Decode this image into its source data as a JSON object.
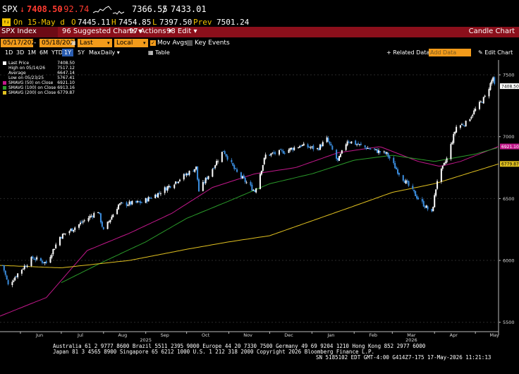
{
  "quote": {
    "ticker": "SPX",
    "arrow": "↓",
    "last": "7408.50",
    "change": "-92.74",
    "range_low": "7366.55",
    "separator": "/",
    "range_high": "7433.01",
    "prefix": "On 15-May d",
    "open_label": "O",
    "open": "7445.11",
    "high_label": "H",
    "high": "7454.85",
    "low_label": "L",
    "low": "7397.50",
    "prev_label": "Prev",
    "prev": "7501.24"
  },
  "toolbar": {
    "security": "SPX Index",
    "suggested": "Suggested Charts",
    "actions": "Actions",
    "edit": "Edit",
    "chart_name": "Candle Chart"
  },
  "controls": {
    "date_from": "05/17/2025",
    "date_to": "05/18/2026",
    "price_field": "Last Price",
    "currency": "Local CCY",
    "mov_avgs": "Mov Avgs",
    "key_events": "Key Events"
  },
  "periods": {
    "items": [
      "1D",
      "3D",
      "1M",
      "6M",
      "YTD",
      "1Y",
      "5Y",
      "Max"
    ],
    "selected": "1Y",
    "frequency": "Daily",
    "table": "Table",
    "related": "Related Data",
    "add_data_placeholder": "Add Data",
    "edit_chart": "Edit Chart"
  },
  "legend": [
    {
      "label": "Last Price",
      "value": "7408.50",
      "color": "#ffffff"
    },
    {
      "label": "High on 05/14/26",
      "value": "7517.12",
      "color": "#000000"
    },
    {
      "label": "Average",
      "value": "6647.14",
      "color": "#000000"
    },
    {
      "label": "Low on 05/23/25",
      "value": "5767.41",
      "color": "#000000"
    },
    {
      "label": "SMAVG (50) on Close",
      "value": "6921.10",
      "color": "#c2188b"
    },
    {
      "label": "SMAVG (100) on Close",
      "value": "6913.16",
      "color": "#2a9a2a"
    },
    {
      "label": "SMAVG (200) on Close",
      "value": "6779.87",
      "color": "#e0c020"
    }
  ],
  "chart_data": {
    "type": "candlestick",
    "title": "",
    "xlabel": "",
    "ylabel": "",
    "ylim": [
      5430,
      7620
    ],
    "y_ticks": [
      5500,
      6000,
      6500,
      7000,
      7500
    ],
    "month_labels": [
      "Jun",
      "Jul",
      "Aug",
      "Sep",
      "Oct",
      "Nov",
      "Dec",
      "Jan",
      "Feb",
      "Mar",
      "Apr",
      "May"
    ],
    "year_labels": [
      "2025",
      "2026"
    ],
    "x_range": [
      "2025-05-17",
      "2026-05-18"
    ],
    "value_tags": [
      {
        "label": "7408.50",
        "value": 7408.5,
        "color": "#ffffff",
        "text_color": "#000000"
      },
      {
        "label": "6921.10",
        "value": 6921.1,
        "color": "#c2188b",
        "text_color": "#ffffff"
      },
      {
        "label": "6779.87",
        "value": 6779.87,
        "color": "#e0c020",
        "text_color": "#000000"
      }
    ],
    "series": [
      {
        "name": "Last Price",
        "type": "candle",
        "up_color": "#ffffff",
        "down_color": "#3b8ee0",
        "anchors": [
          [
            "2025-05-19",
            5960
          ],
          [
            "2025-05-23",
            5800
          ],
          [
            "2025-06-01",
            5920
          ],
          [
            "2025-06-10",
            6020
          ],
          [
            "2025-06-20",
            5980
          ],
          [
            "2025-06-30",
            6190
          ],
          [
            "2025-07-10",
            6260
          ],
          [
            "2025-07-28",
            6400
          ],
          [
            "2025-08-01",
            6240
          ],
          [
            "2025-08-12",
            6450
          ],
          [
            "2025-08-29",
            6470
          ],
          [
            "2025-09-10",
            6540
          ],
          [
            "2025-09-30",
            6690
          ],
          [
            "2025-10-08",
            6750
          ],
          [
            "2025-10-10",
            6560
          ],
          [
            "2025-10-28",
            6890
          ],
          [
            "2025-11-06",
            6720
          ],
          [
            "2025-11-20",
            6560
          ],
          [
            "2025-11-28",
            6850
          ],
          [
            "2025-12-11",
            6880
          ],
          [
            "2025-12-24",
            6930
          ],
          [
            "2026-01-05",
            6900
          ],
          [
            "2026-01-12",
            6980
          ],
          [
            "2026-01-20",
            6800
          ],
          [
            "2026-01-27",
            6970
          ],
          [
            "2026-02-10",
            6910
          ],
          [
            "2026-02-25",
            6860
          ],
          [
            "2026-03-05",
            6720
          ],
          [
            "2026-03-20",
            6500
          ],
          [
            "2026-03-30",
            6380
          ],
          [
            "2026-04-03",
            6650
          ],
          [
            "2026-04-10",
            6820
          ],
          [
            "2026-04-17",
            7080
          ],
          [
            "2026-04-24",
            7110
          ],
          [
            "2026-05-01",
            7220
          ],
          [
            "2026-05-08",
            7320
          ],
          [
            "2026-05-14",
            7480
          ],
          [
            "2026-05-15",
            7408.5
          ]
        ]
      },
      {
        "name": "SMAVG (50) on Close",
        "type": "line",
        "color": "#c2188b",
        "points": [
          [
            "2025-05-17",
            5550
          ],
          [
            "2025-06-20",
            5700
          ],
          [
            "2025-07-20",
            6080
          ],
          [
            "2025-08-20",
            6220
          ],
          [
            "2025-09-20",
            6380
          ],
          [
            "2025-10-20",
            6590
          ],
          [
            "2025-11-20",
            6700
          ],
          [
            "2025-12-20",
            6750
          ],
          [
            "2026-01-20",
            6870
          ],
          [
            "2026-02-20",
            6920
          ],
          [
            "2026-03-20",
            6800
          ],
          [
            "2026-04-05",
            6760
          ],
          [
            "2026-04-20",
            6800
          ],
          [
            "2026-05-18",
            6921.1
          ]
        ]
      },
      {
        "name": "SMAVG (100) on Close",
        "type": "line",
        "color": "#2a9a2a",
        "points": [
          [
            "2025-07-01",
            5820
          ],
          [
            "2025-08-01",
            5990
          ],
          [
            "2025-09-01",
            6150
          ],
          [
            "2025-10-01",
            6340
          ],
          [
            "2025-11-01",
            6480
          ],
          [
            "2025-12-01",
            6620
          ],
          [
            "2026-01-01",
            6700
          ],
          [
            "2026-02-01",
            6810
          ],
          [
            "2026-03-01",
            6850
          ],
          [
            "2026-04-01",
            6800
          ],
          [
            "2026-05-01",
            6860
          ],
          [
            "2026-05-18",
            6913.16
          ]
        ]
      },
      {
        "name": "SMAVG (200) on Close",
        "type": "line",
        "color": "#e0c020",
        "points": [
          [
            "2025-05-17",
            5960
          ],
          [
            "2025-07-01",
            5940
          ],
          [
            "2025-08-20",
            6000
          ],
          [
            "2025-10-01",
            6090
          ],
          [
            "2025-11-01",
            6150
          ],
          [
            "2025-12-01",
            6200
          ],
          [
            "2026-01-01",
            6320
          ],
          [
            "2026-02-01",
            6440
          ],
          [
            "2026-03-01",
            6550
          ],
          [
            "2026-04-01",
            6620
          ],
          [
            "2026-05-18",
            6779.87
          ]
        ]
      }
    ]
  },
  "footer": {
    "line1": "Australia 61 2 9777 8600 Brazil 5511 2395 9000 Europe 44 20 7330 7500 Germany 49 69 9204 1210 Hong Kong 852 2977 6000",
    "line2": "Japan 81 3 4565 8900        Singapore 65 6212 1000        U.S. 1 212 318 2000           Copyright 2026 Bloomberg Finance L.P.",
    "line3": "SN 5185102 EDT  GMT-4:00 G414Z7-175 17-May-2026 11:21:13"
  },
  "colors": {
    "toolbar_red": "#8b0f1b",
    "input_orange": "#f29b1b",
    "negative": "#ff3b30"
  }
}
